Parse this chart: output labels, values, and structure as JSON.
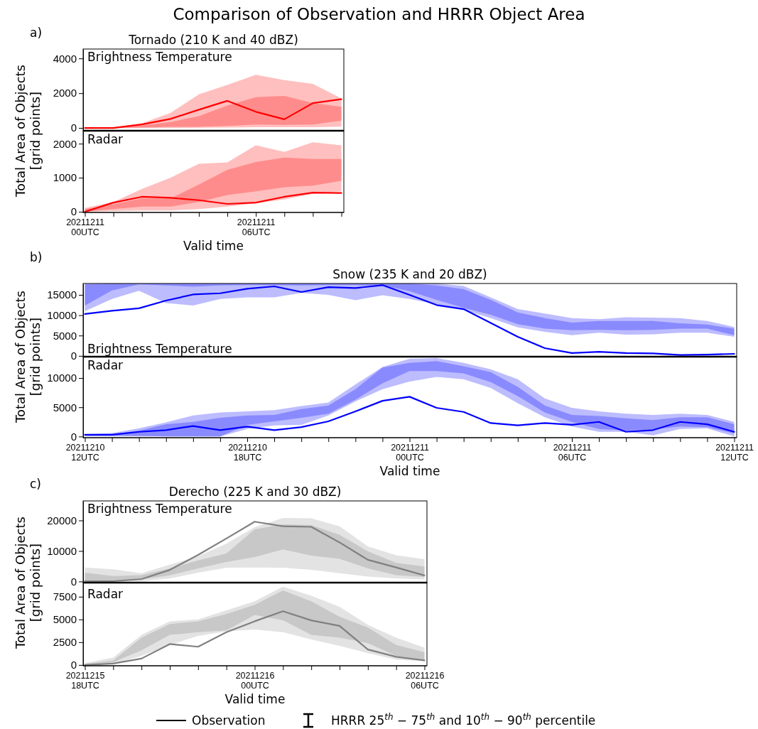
{
  "chart_data": [
    {
      "type": "other",
      "title": "Comparison of Observation and HRRR Object Area",
      "annotations": [
        "Observation",
        "HRRR 25$^{th}$ − 75$^{th}$ and 10$^{th}$ − 90$^{th}$ percentile"
      ]
    },
    {
      "type": "line",
      "title": "Tornado (210 K and 40 dBZ)",
      "annotations": [
        "a)",
        "Brightness Temperature"
      ],
      "tick_labels": "y",
      "categories": [
        null,
        null,
        null,
        null,
        null,
        null,
        null,
        null,
        null,
        null
      ],
      "ylim": [
        -160,
        4540
      ],
      "yticks": [
        0,
        2000,
        4000
      ],
      "series": [
        {
          "color": "#ffbfbf",
          "values": [
            null,
            null,
            null,
            null,
            null,
            null,
            null,
            null,
            null,
            null
          ],
          "lower": [
            0,
            0,
            0,
            0,
            10,
            20,
            40,
            40,
            40,
            70
          ],
          "upper": [
            20,
            40,
            270,
            860,
            1930,
            2480,
            3060,
            2750,
            2540,
            1700
          ]
        },
        {
          "color": "#ff8c8c",
          "values": [
            null,
            null,
            null,
            null,
            null,
            null,
            null,
            null,
            null,
            null
          ],
          "lower": [
            0,
            0,
            20,
            60,
            60,
            120,
            200,
            180,
            200,
            420
          ],
          "upper": [
            10,
            20,
            150,
            340,
            680,
            1290,
            1770,
            1840,
            1430,
            1220
          ]
        },
        {
          "color": "#ff0000",
          "values": [
            0,
            0,
            200,
            520,
            1050,
            1560,
            930,
            500,
            1430,
            1650
          ]
        }
      ]
    },
    {
      "type": "line",
      "annotations": [
        "Radar"
      ],
      "xlabel": "Valid time",
      "ylabel": "Total Area of Objects\n[grid points]",
      "categories": [
        "20211211\n00UTC",
        null,
        null,
        null,
        null,
        null,
        "20211211\n06UTC",
        null,
        null,
        null
      ],
      "ylim": [
        -20,
        2380
      ],
      "yticks": [
        0,
        1000,
        2000
      ],
      "series": [
        {
          "color": "#ffbfbf",
          "values": [
            null,
            null,
            null,
            null,
            null,
            null,
            null,
            null,
            null,
            null
          ],
          "lower": [
            0,
            20,
            40,
            40,
            80,
            150,
            250,
            360,
            530,
            600
          ],
          "upper": [
            110,
            290,
            670,
            1000,
            1410,
            1450,
            1950,
            1760,
            2040,
            1950
          ]
        },
        {
          "color": "#ff8c8c",
          "values": [
            null,
            null,
            null,
            null,
            null,
            null,
            null,
            null,
            null,
            null
          ],
          "lower": [
            0,
            80,
            150,
            150,
            290,
            490,
            600,
            720,
            770,
            910
          ],
          "upper": [
            80,
            220,
            390,
            390,
            800,
            1230,
            1460,
            1590,
            1550,
            1550
          ]
        },
        {
          "color": "#ff0000",
          "values": [
            0,
            270,
            440,
            410,
            340,
            230,
            270,
            440,
            560,
            550
          ]
        }
      ]
    },
    {
      "type": "line",
      "title": "Snow (235 K and 20 dBZ)",
      "annotations": [
        "b)",
        "Brightness Temperature"
      ],
      "tick_labels": "y",
      "categories": [
        null,
        null,
        null,
        null,
        null,
        null,
        null,
        null,
        null,
        null,
        null,
        null,
        null,
        null,
        null,
        null,
        null,
        null,
        null,
        null,
        null,
        null,
        null,
        null,
        null
      ],
      "ylim": [
        -200,
        17800
      ],
      "yticks": [
        0,
        5000,
        10000,
        15000
      ],
      "series": [
        {
          "color": "#bcbcff",
          "values": [
            null,
            null,
            null,
            null,
            null,
            null,
            null,
            null,
            null,
            null,
            null,
            null,
            null,
            null,
            null,
            null,
            null,
            null,
            null,
            null,
            null,
            null,
            null,
            null,
            null
          ],
          "lower": [
            11000,
            14000,
            16000,
            13000,
            12400,
            14000,
            14400,
            14400,
            15500,
            15000,
            13700,
            14900,
            14000,
            12700,
            11300,
            9300,
            7000,
            5900,
            5100,
            5700,
            5200,
            5300,
            5700,
            5700,
            4700
          ],
          "upper": [
            17300,
            17800,
            17800,
            17800,
            17800,
            17800,
            17800,
            17800,
            17800,
            17800,
            17800,
            17800,
            17800,
            17800,
            17200,
            14400,
            11500,
            10400,
            9300,
            9000,
            9500,
            9400,
            9300,
            8600,
            7100
          ]
        },
        {
          "color": "#8a8aff",
          "values": [
            null,
            null,
            null,
            null,
            null,
            null,
            null,
            null,
            null,
            null,
            null,
            null,
            null,
            null,
            null,
            null,
            null,
            null,
            null,
            null,
            null,
            null,
            null,
            null,
            null
          ],
          "lower": [
            12400,
            16100,
            17600,
            17300,
            17000,
            17300,
            17400,
            17400,
            17300,
            17400,
            17400,
            17300,
            15900,
            13800,
            11800,
            10100,
            7800,
            6700,
            6300,
            6400,
            6300,
            6400,
            6700,
            6700,
            5100
          ],
          "upper": [
            17700,
            17800,
            17800,
            17800,
            17800,
            17800,
            17800,
            17800,
            17800,
            17800,
            17800,
            17800,
            17800,
            17300,
            16400,
            13800,
            10700,
            9300,
            8200,
            8600,
            8600,
            8600,
            8000,
            7700,
            6700
          ]
        },
        {
          "color": "#0000ff",
          "values": [
            10300,
            11100,
            11700,
            13600,
            15100,
            15400,
            16500,
            17100,
            15700,
            16900,
            16700,
            17400,
            15000,
            12500,
            11500,
            8100,
            4700,
            1900,
            700,
            1000,
            700,
            600,
            200,
            300,
            500
          ]
        }
      ]
    },
    {
      "type": "line",
      "annotations": [
        "Radar"
      ],
      "xlabel": "Valid time",
      "ylabel": "Total Area of Objects\n[grid points]",
      "categories": [
        "20211210\n12UTC",
        null,
        null,
        null,
        null,
        null,
        "20211210\n18UTC",
        null,
        null,
        null,
        null,
        null,
        "20211211\n00UTC",
        null,
        null,
        null,
        null,
        null,
        "20211211\n06UTC",
        null,
        null,
        null,
        null,
        null,
        "20211211\n12UTC"
      ],
      "ylim": [
        -200,
        13650
      ],
      "yticks": [
        0,
        5000,
        10000
      ],
      "series": [
        {
          "color": "#bcbcff",
          "values": [
            null,
            null,
            null,
            null,
            null,
            null,
            null,
            null,
            null,
            null,
            null,
            null,
            null,
            null,
            null,
            null,
            null,
            null,
            null,
            null,
            null,
            null,
            null,
            null,
            null
          ],
          "lower": [
            0,
            0,
            0,
            0,
            0,
            0,
            1300,
            1900,
            2000,
            3600,
            6000,
            8100,
            9400,
            10200,
            9800,
            8300,
            5700,
            3300,
            1700,
            800,
            800,
            200,
            1300,
            1400,
            0
          ],
          "upper": [
            400,
            600,
            1400,
            2400,
            3600,
            4100,
            4300,
            4500,
            5200,
            5800,
            8900,
            11900,
            13300,
            13400,
            12600,
            11500,
            9800,
            6500,
            4900,
            4300,
            3900,
            3700,
            3900,
            3700,
            2500
          ]
        },
        {
          "color": "#8a8aff",
          "values": [
            null,
            null,
            null,
            null,
            null,
            null,
            null,
            null,
            null,
            null,
            null,
            null,
            null,
            null,
            null,
            null,
            null,
            null,
            null,
            null,
            null,
            null,
            null,
            null,
            null
          ],
          "lower": [
            200,
            200,
            100,
            0,
            0,
            0,
            2000,
            2600,
            3200,
            3900,
            6300,
            9100,
            11200,
            11200,
            10800,
            9300,
            6900,
            4100,
            2500,
            1300,
            1000,
            1200,
            1700,
            1600,
            500
          ],
          "upper": [
            300,
            400,
            1000,
            2100,
            2500,
            3200,
            3600,
            3700,
            4700,
            5300,
            8100,
            11800,
            12600,
            12900,
            12000,
            11000,
            8500,
            5300,
            3700,
            3500,
            3100,
            2800,
            3300,
            3300,
            2100
          ]
        },
        {
          "color": "#0000ff",
          "values": [
            300,
            300,
            800,
            1100,
            1800,
            1100,
            1700,
            1100,
            1600,
            2600,
            4300,
            6100,
            6800,
            4900,
            4200,
            2300,
            1900,
            2300,
            2000,
            2500,
            800,
            1100,
            2500,
            2100,
            800
          ]
        }
      ]
    },
    {
      "type": "line",
      "title": "Derecho (225 K and 30 dBZ)",
      "annotations": [
        "c)",
        "Brightness Temperature"
      ],
      "tick_labels": "y",
      "categories": [
        null,
        null,
        null,
        null,
        null,
        null,
        null,
        null,
        null,
        null,
        null,
        null,
        null
      ],
      "ylim": [
        -370,
        26400
      ],
      "yticks": [
        0,
        10000,
        20000
      ],
      "series": [
        {
          "color": "#e3e3e3",
          "values": [
            null,
            null,
            null,
            null,
            null,
            null,
            null,
            null,
            null,
            null,
            null,
            null,
            null
          ],
          "lower": [
            0,
            0,
            100,
            1000,
            2900,
            4500,
            4600,
            4500,
            3800,
            2700,
            1600,
            1000,
            700
          ],
          "upper": [
            4600,
            4000,
            2700,
            5500,
            8300,
            12400,
            17800,
            20800,
            20700,
            18100,
            11500,
            8600,
            7300
          ]
        },
        {
          "color": "#c8c8c8",
          "values": [
            null,
            null,
            null,
            null,
            null,
            null,
            null,
            null,
            null,
            null,
            null,
            null,
            null
          ],
          "lower": [
            300,
            100,
            700,
            2000,
            4300,
            6400,
            8000,
            10500,
            8500,
            7400,
            4300,
            2100,
            1500
          ],
          "upper": [
            2900,
            1800,
            2100,
            4300,
            6900,
            9200,
            17100,
            18700,
            18500,
            15300,
            9900,
            6100,
            4900
          ]
        },
        {
          "color": "#808080",
          "values": [
            100,
            100,
            800,
            3800,
            8700,
            14100,
            19600,
            18100,
            17900,
            12800,
            7100,
            4600,
            2000
          ]
        }
      ]
    },
    {
      "type": "line",
      "annotations": [
        "Radar"
      ],
      "xlabel": "Valid time",
      "ylabel": "Total Area of Objects\n[grid points]",
      "categories": [
        "20211215\n18UTC",
        null,
        null,
        null,
        null,
        null,
        "20211216\n00UTC",
        null,
        null,
        null,
        null,
        null,
        "20211216\n06UTC"
      ],
      "ylim": [
        -90,
        9050
      ],
      "yticks": [
        0,
        2500,
        5000,
        7500
      ],
      "series": [
        {
          "color": "#e3e3e3",
          "values": [
            null,
            null,
            null,
            null,
            null,
            null,
            null,
            null,
            null,
            null,
            null,
            null,
            null
          ],
          "lower": [
            0,
            100,
            1000,
            2200,
            3200,
            3700,
            3900,
            3600,
            2800,
            2100,
            1300,
            600,
            400
          ],
          "upper": [
            200,
            800,
            3300,
            4800,
            5000,
            6000,
            7000,
            8600,
            7600,
            6400,
            4400,
            3000,
            1900
          ]
        },
        {
          "color": "#c8c8c8",
          "values": [
            null,
            null,
            null,
            null,
            null,
            null,
            null,
            null,
            null,
            null,
            null,
            null,
            null
          ],
          "lower": [
            0,
            300,
            1600,
            3300,
            3600,
            3800,
            5500,
            4900,
            3300,
            3000,
            2400,
            1000,
            600
          ],
          "upper": [
            100,
            500,
            3000,
            4500,
            4800,
            5600,
            6600,
            8200,
            7000,
            5300,
            4100,
            2200,
            1400
          ]
        },
        {
          "color": "#808080",
          "values": [
            0,
            150,
            700,
            2300,
            2000,
            3600,
            4800,
            5900,
            4900,
            4300,
            1700,
            900,
            500
          ]
        }
      ]
    }
  ]
}
